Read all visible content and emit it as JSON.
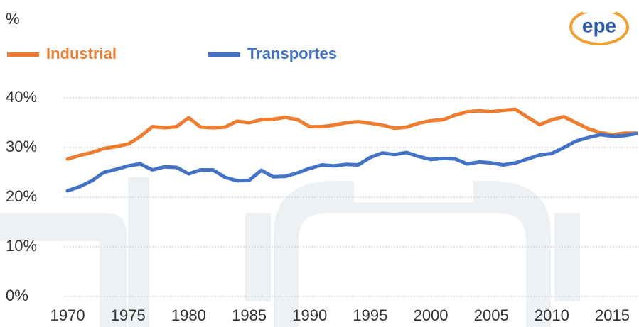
{
  "chart_data": {
    "type": "line",
    "y_label": "%",
    "logo": "epe",
    "x": [
      1970,
      1971,
      1972,
      1973,
      1974,
      1975,
      1976,
      1977,
      1978,
      1979,
      1980,
      1981,
      1982,
      1983,
      1984,
      1985,
      1986,
      1987,
      1988,
      1989,
      1990,
      1991,
      1992,
      1993,
      1994,
      1995,
      1996,
      1997,
      1998,
      1999,
      2000,
      2001,
      2002,
      2003,
      2004,
      2005,
      2006,
      2007,
      2008,
      2009,
      2010,
      2011,
      2012,
      2013,
      2014,
      2015,
      2016,
      2017
    ],
    "series": [
      {
        "name": "Industrial",
        "color": "#ed7d31",
        "values": [
          27.7,
          28.4,
          29.0,
          29.8,
          30.2,
          30.7,
          32.2,
          34.2,
          34.0,
          34.2,
          36.0,
          34.1,
          34.0,
          34.1,
          35.3,
          35.0,
          35.6,
          35.7,
          36.1,
          35.6,
          34.2,
          34.2,
          34.5,
          35.0,
          35.2,
          34.9,
          34.5,
          33.9,
          34.1,
          34.9,
          35.4,
          35.6,
          36.5,
          37.2,
          37.4,
          37.2,
          37.5,
          37.7,
          36.1,
          34.6,
          35.6,
          36.2,
          35.0,
          33.8,
          33.0,
          32.6,
          32.9,
          32.9
        ]
      },
      {
        "name": "Transportes",
        "color": "#4472c4",
        "values": [
          21.3,
          22.1,
          23.3,
          25.0,
          25.6,
          26.3,
          26.7,
          25.5,
          26.1,
          26.0,
          24.7,
          25.5,
          25.5,
          24.0,
          23.3,
          23.4,
          25.4,
          24.1,
          24.2,
          24.9,
          25.8,
          26.5,
          26.3,
          26.6,
          26.5,
          28.0,
          28.9,
          28.6,
          29.0,
          28.2,
          27.6,
          27.8,
          27.7,
          26.7,
          27.1,
          26.9,
          26.5,
          26.9,
          27.7,
          28.5,
          28.8,
          30.0,
          31.3,
          32.0,
          32.6,
          32.3,
          32.4,
          32.8
        ]
      }
    ],
    "xlim": [
      1969.7,
      2017.2
    ],
    "xticks": [
      1970,
      1975,
      1980,
      1985,
      1990,
      1995,
      2000,
      2005,
      2010,
      2015
    ],
    "ylim": [
      0,
      40
    ],
    "yticks": [
      {
        "value": 0,
        "label": "0%"
      },
      {
        "value": 10,
        "label": "10%"
      },
      {
        "value": 20,
        "label": "20%"
      },
      {
        "value": 30,
        "label": "30%"
      },
      {
        "value": 40,
        "label": "40%"
      }
    ],
    "grid": true
  }
}
